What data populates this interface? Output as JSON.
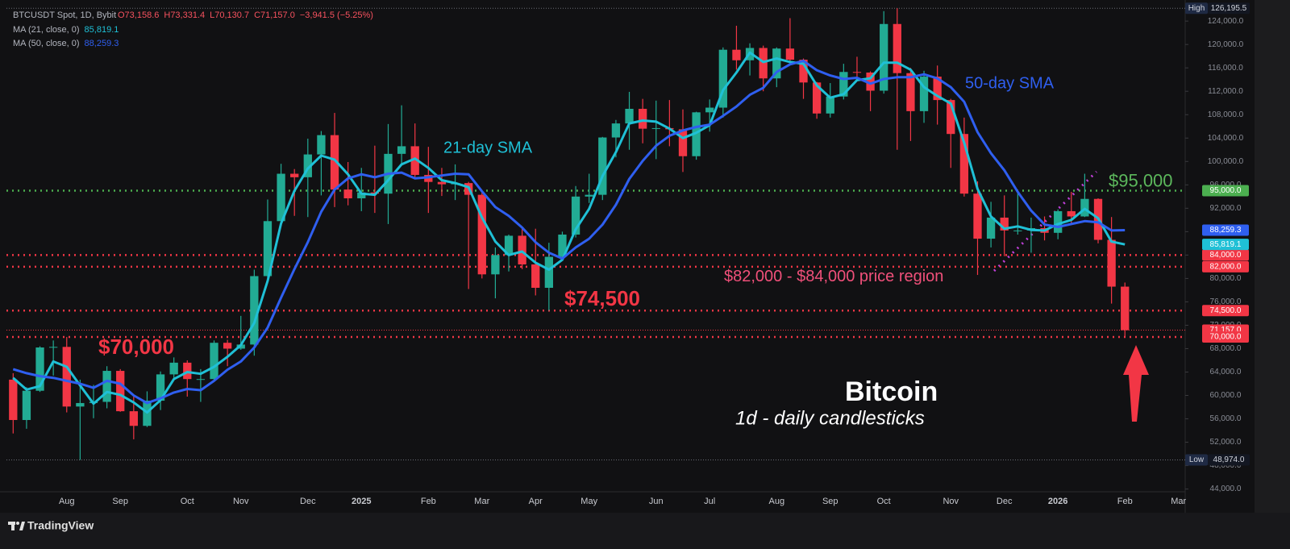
{
  "chart_data": {
    "type": "candlestick",
    "header": {
      "symbol": "BTCUSDT Spot, 1D, Bybit",
      "ohlc": [
        "O73,158.6",
        "H73,331.4",
        "L70,130.7",
        "C71,157.0",
        "−3,941.5 (−5.25%)"
      ]
    },
    "title": "Bitcoin",
    "subtitle": "1d - daily candlesticks",
    "brand": "TradingView",
    "up_color": "#22ab94",
    "down_color": "#f23645",
    "grid": false,
    "categories": [
      null,
      null,
      null,
      null,
      "Aug",
      null,
      null,
      null,
      "Sep",
      null,
      null,
      null,
      null,
      "Oct",
      null,
      null,
      null,
      "Nov",
      null,
      null,
      null,
      null,
      "Dec",
      null,
      null,
      null,
      "2025",
      null,
      null,
      null,
      null,
      "Feb",
      null,
      null,
      null,
      "Mar",
      null,
      null,
      null,
      "Apr",
      null,
      null,
      null,
      "May",
      null,
      null,
      null,
      null,
      "Jun",
      null,
      null,
      null,
      "Jul",
      null,
      null,
      null,
      null,
      "Aug",
      null,
      null,
      null,
      "Sep",
      null,
      null,
      null,
      "Oct",
      null,
      null,
      null,
      null,
      "Nov",
      null,
      null,
      null,
      "Dec",
      null,
      null,
      null,
      "2026",
      null,
      null,
      null,
      null,
      "Feb",
      null,
      null,
      null,
      "Mar"
    ],
    "open": [
      62700,
      55800,
      60800,
      68200,
      68300,
      58100,
      58700,
      58900,
      64200,
      57300,
      54800,
      59100,
      63600,
      65600,
      62800,
      62800,
      69000,
      68000,
      68700,
      80400,
      89800,
      97900,
      97300,
      101200,
      104500,
      95200,
      93700,
      94700,
      94500,
      101300,
      102600,
      97700,
      96500,
      96100,
      96300,
      94300,
      80700,
      84000,
      87300,
      82400,
      78400,
      83700,
      87500,
      94000,
      94300,
      104100,
      106500,
      109000,
      105600,
      105700,
      105500,
      100900,
      108400,
      109200,
      119100,
      117300,
      119400,
      114200,
      119300,
      117400,
      113500,
      108200,
      111100,
      115300,
      115200,
      112100,
      123500,
      115100,
      108600,
      114500,
      110500,
      104700,
      94500,
      86800,
      90400,
      88200,
      88200,
      88600,
      87800,
      91500,
      90600,
      93600,
      86600,
      78600,
      null,
      null,
      null,
      null
    ],
    "high": [
      63800,
      61400,
      68400,
      69400,
      70000,
      62700,
      61800,
      65000,
      64500,
      59800,
      60700,
      64100,
      66500,
      66000,
      64500,
      69400,
      69500,
      73600,
      81500,
      93500,
      99600,
      98700,
      103900,
      105200,
      108300,
      99900,
      98900,
      102700,
      106400,
      109600,
      106500,
      102500,
      98900,
      99500,
      96500,
      95000,
      85300,
      87500,
      88800,
      88500,
      86100,
      88000,
      95800,
      97900,
      104200,
      107100,
      111900,
      110700,
      110400,
      110500,
      108900,
      108500,
      110600,
      119500,
      123200,
      120200,
      119800,
      119500,
      124500,
      117600,
      113600,
      113400,
      116700,
      117900,
      115400,
      125700,
      126195.5,
      116000,
      115500,
      116400,
      110700,
      107500,
      96600,
      93100,
      94200,
      94600,
      90400,
      90600,
      91800,
      94800,
      97900,
      93700,
      90500,
      79300,
      null,
      null,
      null,
      null
    ],
    "low": [
      53500,
      54300,
      60600,
      63400,
      57100,
      48974,
      56100,
      57800,
      57200,
      52500,
      54600,
      57500,
      62700,
      59800,
      58900,
      62500,
      65000,
      67800,
      66800,
      80100,
      89400,
      90700,
      90500,
      94200,
      92200,
      92500,
      91500,
      91200,
      89300,
      99500,
      97200,
      91200,
      94100,
      93400,
      78200,
      80000,
      76600,
      81200,
      81600,
      77100,
      74500,
      83100,
      87000,
      92900,
      93400,
      100700,
      102000,
      103100,
      100400,
      102600,
      98200,
      100300,
      105100,
      107500,
      115700,
      114700,
      112000,
      112700,
      116800,
      110700,
      107300,
      107500,
      110600,
      114500,
      108600,
      111600,
      102000,
      103500,
      106600,
      106300,
      98900,
      94000,
      80600,
      85300,
      83800,
      87500,
      84400,
      86500,
      86700,
      89300,
      90500,
      86000,
      75700,
      70130.7,
      null,
      null,
      null,
      null
    ],
    "close": [
      55800,
      60800,
      68200,
      68300,
      58100,
      58700,
      58900,
      64200,
      57300,
      54800,
      59100,
      63600,
      65600,
      62800,
      62800,
      69000,
      68000,
      68700,
      80400,
      89800,
      97900,
      97300,
      101200,
      104500,
      95200,
      93700,
      94700,
      94500,
      101300,
      102600,
      97700,
      96500,
      96100,
      96300,
      94300,
      80700,
      84000,
      87300,
      82400,
      78400,
      83700,
      87500,
      94000,
      94300,
      104100,
      106500,
      109000,
      105600,
      105700,
      105500,
      100900,
      108400,
      109200,
      119100,
      117300,
      119400,
      114200,
      119300,
      117400,
      113500,
      108200,
      111100,
      115300,
      115200,
      112100,
      123500,
      115100,
      108600,
      114500,
      110500,
      104700,
      94500,
      86800,
      90400,
      88200,
      88200,
      88600,
      87800,
      91500,
      90600,
      93600,
      86600,
      78600,
      71157,
      null,
      null,
      null,
      null
    ],
    "series": [
      {
        "name": "MA (21, close, 0)",
        "annotation": "21-day SMA",
        "color": "#1fc0d6",
        "last_label": "85,819.1",
        "values": [
          63000,
          61000,
          61600,
          65800,
          64900,
          61700,
          58600,
          60600,
          60100,
          58800,
          57100,
          59200,
          62800,
          64000,
          63700,
          64900,
          66600,
          68600,
          72400,
          79600,
          89400,
          95000,
          98800,
          101000,
          100300,
          97800,
          94500,
          94300,
          96800,
          99500,
          100500,
          98900,
          96800,
          96300,
          95600,
          90400,
          86300,
          84000,
          84600,
          82700,
          81500,
          83200,
          88400,
          91900,
          97500,
          101600,
          106500,
          107000,
          106800,
          105600,
          104000,
          104900,
          106200,
          112200,
          115200,
          118600,
          117000,
          117600,
          117000,
          116700,
          113000,
          110900,
          111500,
          113900,
          114200,
          116900,
          116900,
          115700,
          112700,
          111200,
          109900,
          103200,
          95300,
          90600,
          88500,
          88900,
          88300,
          88200,
          89300,
          90000,
          91900,
          90300,
          86300,
          85819.1,
          null,
          null,
          null,
          null
        ]
      },
      {
        "name": "MA (50, close, 0)",
        "annotation": "50-day SMA",
        "color": "#2f5ff0",
        "last_label": "88,259.3",
        "values": [
          64500,
          63800,
          63300,
          63000,
          62500,
          62000,
          61300,
          62500,
          62000,
          60000,
          58700,
          59500,
          60500,
          61100,
          60900,
          62500,
          64400,
          65800,
          68200,
          71600,
          76700,
          81600,
          86200,
          91400,
          95200,
          97100,
          97800,
          97300,
          97900,
          98100,
          97100,
          97300,
          97600,
          97900,
          97800,
          94900,
          92200,
          90700,
          88700,
          86200,
          84400,
          83400,
          85300,
          86800,
          89200,
          92600,
          97000,
          100100,
          102700,
          104400,
          105300,
          105900,
          106300,
          107800,
          109400,
          111400,
          112600,
          115300,
          116600,
          117200,
          115600,
          114700,
          114100,
          114300,
          113300,
          114100,
          114400,
          114400,
          114900,
          114200,
          112700,
          110200,
          105000,
          101400,
          98500,
          94800,
          91600,
          89200,
          88800,
          89300,
          89800,
          89600,
          88200,
          88259.3,
          null,
          null,
          null,
          null
        ]
      }
    ],
    "levels": [
      {
        "value": 95000,
        "label": "95,000.0",
        "color": "#4caf50",
        "annotation": "$95,000"
      },
      {
        "value": 84000,
        "label": "84,000.0",
        "color": "#f23645"
      },
      {
        "value": 82000,
        "label": "82,000.0",
        "color": "#f23645",
        "annotation": "$82,000 - $84,000 price region"
      },
      {
        "value": 74500,
        "label": "74,500.0",
        "color": "#f23645",
        "annotation": "$74,500"
      },
      {
        "value": 71157,
        "label": "71,157.0",
        "color": "#f23645"
      },
      {
        "value": 70000,
        "label": "70,000.0",
        "color": "#f23645",
        "annotation": "$70,000"
      }
    ],
    "extremes": [
      {
        "name": "High",
        "value": 126195.5,
        "label": "126,195.5"
      },
      {
        "name": "Low",
        "value": 48974,
        "label": "48,974.0"
      }
    ],
    "ylim": [
      40500,
      126500
    ],
    "yticks": [
      {
        "value": 44000,
        "label": "44,000.0"
      },
      {
        "value": 48000,
        "label": "48,000.0"
      },
      {
        "value": 52000,
        "label": "52,000.0"
      },
      {
        "value": 56000,
        "label": "56,000.0"
      },
      {
        "value": 60000,
        "label": "60,000.0"
      },
      {
        "value": 64000,
        "label": "64,000.0"
      },
      {
        "value": 68000,
        "label": "68,000.0"
      },
      {
        "value": 72000,
        "label": "72,000.0"
      },
      {
        "value": 76000,
        "label": "76,000.0"
      },
      {
        "value": 80000,
        "label": "80,000.0"
      },
      {
        "value": 84000,
        "label": "84,000.0"
      },
      {
        "value": 88000,
        "label": "88,000.0"
      },
      {
        "value": 92000,
        "label": "92,000.0"
      },
      {
        "value": 96000,
        "label": "96,000.0"
      },
      {
        "value": 100000,
        "label": "100,000.0"
      },
      {
        "value": 104000,
        "label": "104,000.0"
      },
      {
        "value": 108000,
        "label": "108,000.0"
      },
      {
        "value": 112000,
        "label": "112,000.0"
      },
      {
        "value": 116000,
        "label": "116,000.0"
      },
      {
        "value": 120000,
        "label": "120,000.0"
      },
      {
        "value": 124000,
        "label": "124,000.0"
      }
    ]
  }
}
